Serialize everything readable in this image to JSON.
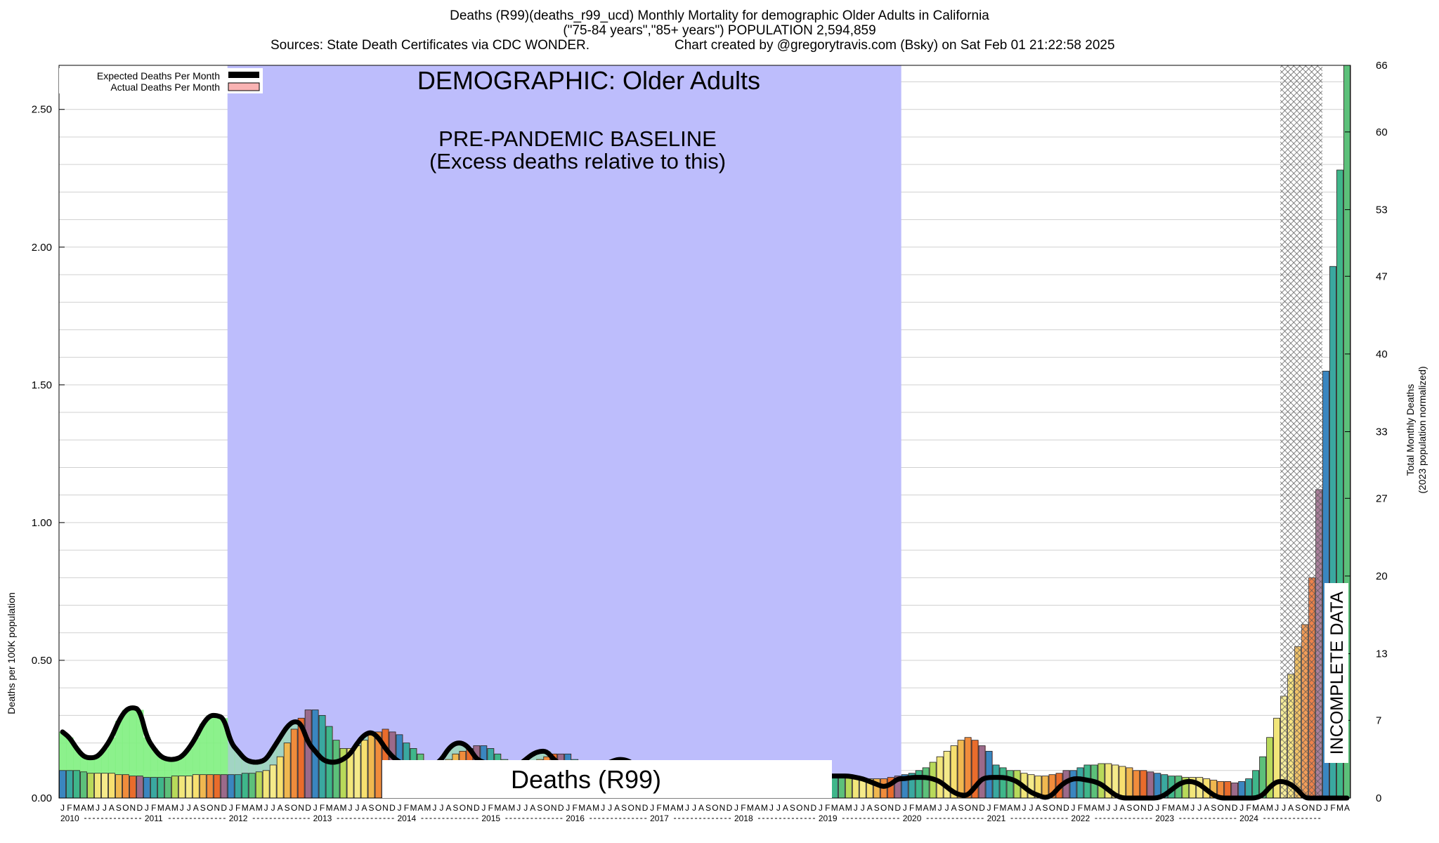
{
  "header": {
    "title": "Deaths (R99)(deaths_r99_ucd) Monthly Mortality for demographic Older Adults in California",
    "subtitle": "(\"75-84 years\",\"85+ years\") POPULATION 2,594,859",
    "sources": "Sources: State Death Certificates via CDC WONDER.",
    "credit": "Chart created by @gregorytravis.com (Bsky) on Sat Feb 01 21:22:58 2025"
  },
  "legend": {
    "expected_label": "Expected Deaths Per Month",
    "actual_label": "Actual Deaths Per Month"
  },
  "annotations": {
    "demographic": "DEMOGRAPHIC: Older Adults",
    "baseline_line1": "PRE-PANDEMIC BASELINE",
    "baseline_line2": "(Excess deaths relative to this)",
    "category_box": "Deaths (R99)",
    "incomplete": "INCOMPLETE DATA"
  },
  "axes": {
    "y_left_label": "Deaths per 100K population",
    "y_right_label_1": "Total Monthly Deaths",
    "y_right_label_2": "(2023 population normalized)",
    "y_left_ticks": [
      "0.00",
      "0.50",
      "1.00",
      "1.50",
      "2.00",
      "2.50"
    ],
    "y_right_ticks": [
      "0",
      "7",
      "13",
      "20",
      "27",
      "33",
      "40",
      "47",
      "53",
      "60",
      "66"
    ],
    "month_letters": [
      "J",
      "F",
      "M",
      "A",
      "M",
      "J",
      "J",
      "A",
      "S",
      "O",
      "N",
      "D"
    ],
    "years": [
      "2010",
      "2011",
      "2012",
      "2013",
      "2014",
      "2015",
      "2016",
      "2017",
      "2018",
      "2019",
      "2020",
      "2021",
      "2022",
      "2023",
      "2024"
    ]
  },
  "colors": {
    "baseline_shade": "#bdbdfc",
    "expected_line": "#000000",
    "actual_fill": "#f4a3a3",
    "legend_actual": "#f9b3b3",
    "excess_below_fill": "#80f080",
    "incomplete_hatch": "#777777"
  },
  "chart_data": {
    "type": "bar",
    "title": "Deaths (R99)(deaths_r99_ucd) Monthly Mortality for demographic Older Adults in California",
    "ylabel": "Deaths per 100K population",
    "ylabel_right": "Total Monthly Deaths (2023 population normalized)",
    "ylim": [
      0,
      2.66
    ],
    "y_right_lim": [
      0,
      66
    ],
    "x_start": "2010-01",
    "x_end": "2024-12",
    "baseline_period": [
      "2012-01",
      "2019-12"
    ],
    "incomplete_period": [
      "2024-07",
      "2024-12"
    ],
    "grid": true,
    "legend_position": "top-left",
    "series": [
      {
        "name": "Actual Deaths Per Month",
        "values": [
          0.1,
          0.1,
          0.1,
          0.095,
          0.09,
          0.09,
          0.09,
          0.09,
          0.085,
          0.085,
          0.08,
          0.08,
          0.075,
          0.075,
          0.075,
          0.075,
          0.08,
          0.08,
          0.08,
          0.085,
          0.085,
          0.085,
          0.085,
          0.085,
          0.085,
          0.085,
          0.09,
          0.09,
          0.095,
          0.1,
          0.12,
          0.15,
          0.2,
          0.25,
          0.29,
          0.32,
          0.32,
          0.3,
          0.26,
          0.21,
          0.18,
          0.18,
          0.19,
          0.21,
          0.23,
          0.24,
          0.25,
          0.24,
          0.23,
          0.2,
          0.18,
          0.16,
          0.13,
          0.12,
          0.13,
          0.14,
          0.16,
          0.17,
          0.18,
          0.19,
          0.19,
          0.18,
          0.16,
          0.14,
          0.12,
          0.11,
          0.12,
          0.13,
          0.14,
          0.15,
          0.16,
          0.16,
          0.16,
          0.14,
          0.13,
          0.12,
          0.11,
          0.1,
          0.1,
          0.11,
          0.12,
          0.12,
          0.12,
          0.11,
          0.11,
          0.1,
          0.1,
          0.1,
          0.09,
          0.09,
          0.09,
          0.09,
          0.09,
          0.09,
          0.09,
          0.09,
          0.09,
          0.09,
          0.09,
          0.09,
          0.09,
          0.09,
          0.09,
          0.09,
          0.09,
          0.09,
          0.09,
          0.09,
          0.09,
          0.09,
          0.085,
          0.08,
          0.08,
          0.075,
          0.07,
          0.07,
          0.07,
          0.07,
          0.075,
          0.08,
          0.085,
          0.09,
          0.1,
          0.11,
          0.13,
          0.15,
          0.17,
          0.19,
          0.21,
          0.22,
          0.21,
          0.19,
          0.17,
          0.12,
          0.11,
          0.1,
          0.1,
          0.09,
          0.085,
          0.08,
          0.08,
          0.085,
          0.09,
          0.1,
          0.1,
          0.11,
          0.12,
          0.12,
          0.125,
          0.125,
          0.12,
          0.115,
          0.11,
          0.1,
          0.1,
          0.095,
          0.09,
          0.085,
          0.08,
          0.08,
          0.075,
          0.075,
          0.075,
          0.07,
          0.065,
          0.06,
          0.06,
          0.055,
          0.06,
          0.07,
          0.1,
          0.15,
          0.22,
          0.29,
          0.37,
          0.45,
          0.55,
          0.63,
          0.8,
          1.12,
          1.55,
          1.93,
          2.28,
          2.66
        ]
      },
      {
        "name": "Expected Deaths Per Month",
        "values": [
          0.24,
          0.22,
          0.18,
          0.15,
          0.145,
          0.15,
          0.18,
          0.22,
          0.28,
          0.32,
          0.33,
          0.32,
          0.22,
          0.18,
          0.15,
          0.14,
          0.14,
          0.15,
          0.18,
          0.22,
          0.27,
          0.3,
          0.3,
          0.29,
          0.2,
          0.17,
          0.14,
          0.13,
          0.13,
          0.14,
          0.18,
          0.22,
          0.26,
          0.28,
          0.27,
          0.2,
          0.17,
          0.14,
          0.13,
          0.13,
          0.14,
          0.16,
          0.2,
          0.23,
          0.24,
          0.22,
          0.18,
          0.15,
          0.13,
          0.12,
          0.11,
          0.11,
          0.11,
          0.12,
          0.14,
          0.18,
          0.2,
          0.2,
          0.18,
          0.14,
          0.13,
          0.12,
          0.11,
          0.11,
          0.11,
          0.12,
          0.14,
          0.16,
          0.17,
          0.17,
          0.14,
          0.12,
          0.11,
          0.11,
          0.1,
          0.1,
          0.11,
          0.12,
          0.13,
          0.14,
          0.14,
          0.13,
          0.11,
          0.1,
          0.1,
          0.1,
          0.09,
          0.09,
          0.09,
          0.09,
          0.09,
          0.09,
          0.09,
          0.09,
          0.09,
          0.09,
          0.09,
          0.09,
          0.09,
          0.09,
          0.09,
          0.09,
          0.09,
          0.09,
          0.09,
          0.09,
          0.09,
          0.09,
          0.08,
          0.08,
          0.08,
          0.08,
          0.08,
          0.075,
          0.07,
          0.06,
          0.05,
          0.04,
          0.05,
          0.07,
          0.07,
          0.075,
          0.075,
          0.075,
          0.07,
          0.06,
          0.04,
          0.02,
          0.01,
          0.01,
          0.04,
          0.07,
          0.075,
          0.075,
          0.075,
          0.07,
          0.06,
          0.04,
          0.02,
          0.01,
          0.0,
          0.01,
          0.04,
          0.06,
          0.07,
          0.07,
          0.065,
          0.06,
          0.05,
          0.03,
          0.01,
          0.0,
          0.0,
          0.0,
          0.0,
          0.0,
          0.0,
          0.01,
          0.03,
          0.05,
          0.06,
          0.06,
          0.05,
          0.03,
          0.01,
          0.0,
          0.0,
          0.0,
          0.0,
          0.0,
          0.0,
          0.01,
          0.04,
          0.06,
          0.06,
          0.05,
          0.03,
          0.0,
          0.0,
          0.0,
          0.0,
          0.0,
          0.0,
          0.0
        ]
      }
    ]
  }
}
